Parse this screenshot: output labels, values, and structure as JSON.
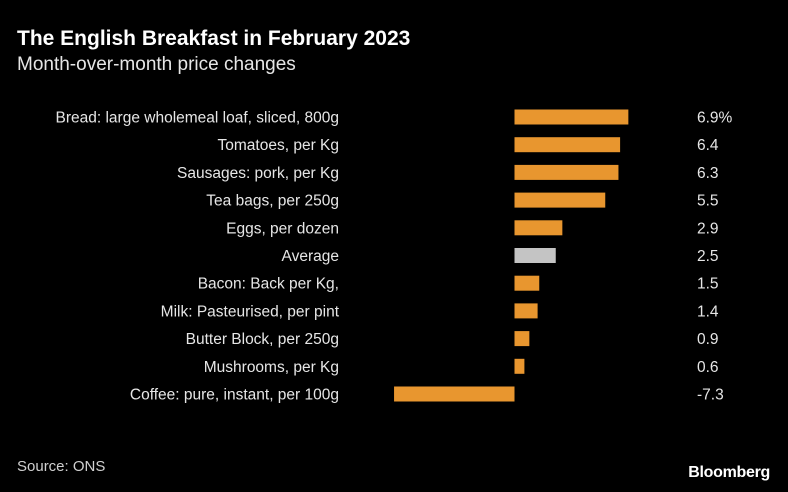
{
  "header": {
    "title": "The English Breakfast in February 2023",
    "subtitle": "Month-over-month price changes"
  },
  "footer": {
    "source": "Source: ONS",
    "brand": "Bloomberg"
  },
  "colors": {
    "bar": "#e8962f",
    "average_bar": "#c4c4c4",
    "background": "#000000",
    "text": "#e6e6e6"
  },
  "chart_data": {
    "type": "bar",
    "orientation": "horizontal",
    "title": "The English Breakfast in February 2023",
    "subtitle": "Month-over-month price changes",
    "categories": [
      "Bread: large wholemeal loaf, sliced, 800g",
      "Tomatoes, per Kg",
      "Sausages: pork, per Kg",
      "Tea bags, per 250g",
      "Eggs, per dozen",
      "Average",
      "Bacon: Back per Kg,",
      "Milk: Pasteurised, per pint",
      "Butter Block, per 250g",
      "Mushrooms, per Kg",
      "Coffee: pure, instant, per 100g"
    ],
    "values": [
      6.9,
      6.4,
      6.3,
      5.5,
      2.9,
      2.5,
      1.5,
      1.4,
      0.9,
      0.6,
      -7.3
    ],
    "value_labels": [
      "6.9%",
      "6.4",
      "6.3",
      "5.5",
      "2.9",
      "2.5",
      "1.5",
      "1.4",
      "0.9",
      "0.6",
      "-7.3"
    ],
    "highlight": "Average",
    "xlim": [
      -7.3,
      6.9
    ],
    "grid": false,
    "legend": "none"
  }
}
